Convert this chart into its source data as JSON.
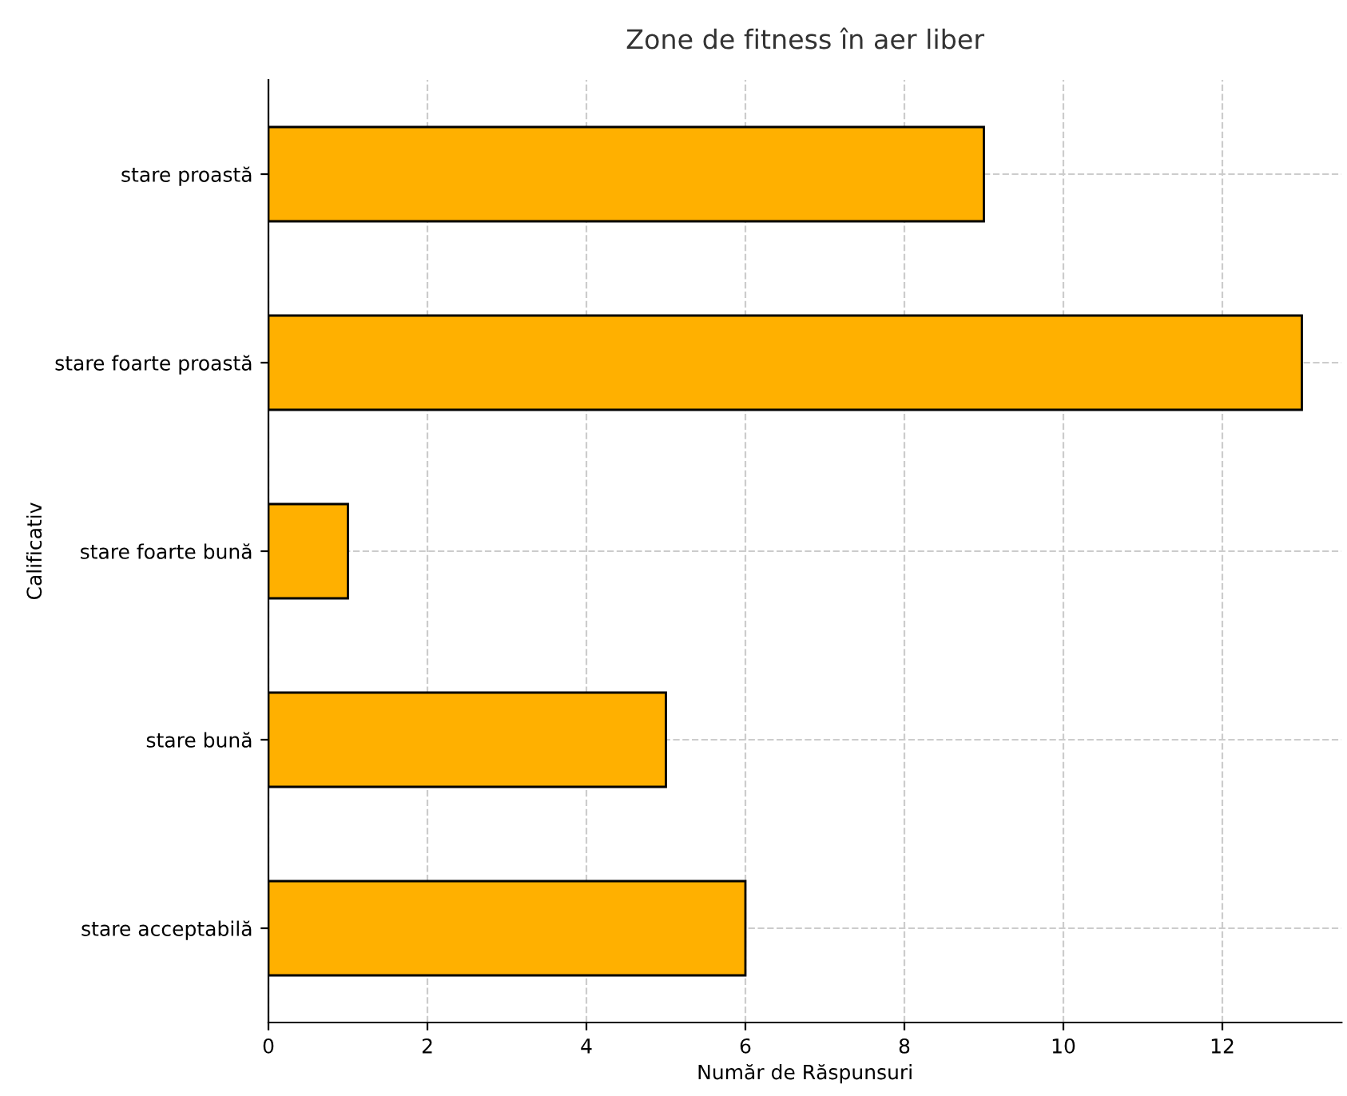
{
  "chart_data": {
    "type": "bar",
    "orientation": "horizontal",
    "title": "Zone de fitness în aer liber",
    "xlabel": "Număr de Răspunsuri",
    "ylabel": "Calificativ",
    "categories": [
      "stare proastă",
      "stare foarte proastă",
      "stare foarte bună",
      "stare bună",
      "stare acceptabilă"
    ],
    "values": [
      9,
      13,
      1,
      5,
      6
    ],
    "color": "#ffb000",
    "xlim": [
      0,
      13.5
    ],
    "xticks": [
      0,
      2,
      4,
      6,
      8,
      10,
      12
    ],
    "grid": true,
    "line_style": "dashed"
  }
}
